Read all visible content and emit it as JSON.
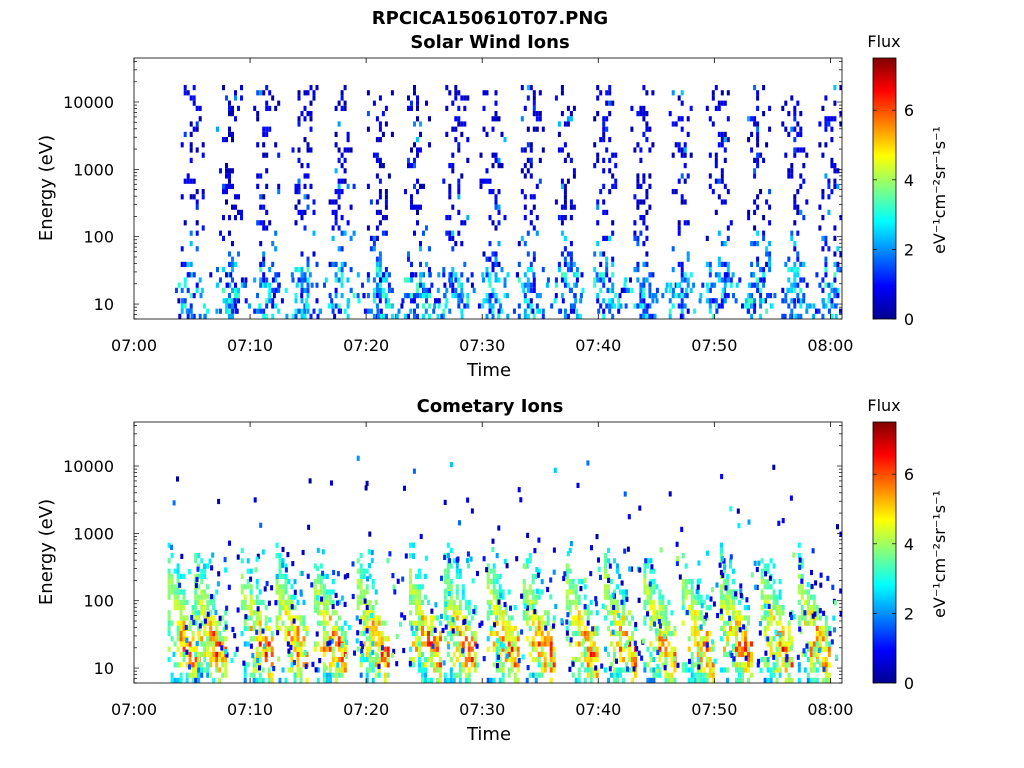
{
  "figure": {
    "title": "RPCICA150610T07.PNG"
  },
  "colorbar": {
    "label": "Flux",
    "unit": "eV⁻¹cm⁻²sr⁻¹s⁻¹",
    "range": [
      0,
      7.5
    ],
    "ticks": [
      "0",
      "2",
      "4",
      "6"
    ],
    "colormap": "jet",
    "stops": [
      "#00008f",
      "#0000ff",
      "#0080ff",
      "#00ffff",
      "#80ff80",
      "#ffff00",
      "#ff8000",
      "#ff0000",
      "#800000"
    ]
  },
  "chart_data": [
    {
      "type": "heatmap",
      "title": "Solar Wind Ions",
      "xlabel": "Time",
      "ylabel": "Energy (eV)",
      "xlim": [
        "07:00",
        "08:01"
      ],
      "ylim": [
        6,
        45000
      ],
      "yscale": "log",
      "xticks": [
        "07:00",
        "07:10",
        "07:20",
        "07:30",
        "07:40",
        "07:50",
        "08:00"
      ],
      "yticks": [
        "10",
        "100",
        "1000",
        "10000"
      ],
      "colorbar_label": "Flux",
      "burst_times_min": [
        4.8,
        8.1,
        11.3,
        14.6,
        17.8,
        21.1,
        24.3,
        27.6,
        30.8,
        34.1,
        37.3,
        40.6,
        43.8,
        47.1,
        50.3,
        53.6,
        56.8,
        60.0
      ],
      "dominant_flux_low_energy": 2.0,
      "dominant_flux_high_energy": 0.5,
      "max_energy_eV": 20000
    },
    {
      "type": "heatmap",
      "title": "Cometary Ions",
      "xlabel": "Time",
      "ylabel": "Energy (eV)",
      "xlim": [
        "07:00",
        "08:01"
      ],
      "ylim": [
        6,
        45000
      ],
      "yscale": "log",
      "xticks": [
        "07:00",
        "07:10",
        "07:20",
        "07:30",
        "07:40",
        "07:50",
        "08:00"
      ],
      "yticks": [
        "10",
        "100",
        "1000",
        "10000"
      ],
      "colorbar_label": "Flux",
      "burst_times_min": [
        4.7,
        7.0,
        11.0,
        14.0,
        17.3,
        21.0,
        25.5,
        28.5,
        32.2,
        35.3,
        39.0,
        42.3,
        45.7,
        49.0,
        52.3,
        55.8,
        59.0
      ],
      "peak_flux": 7.0,
      "peak_energy_eV": 20,
      "sparse_max_energy_eV": 15000
    }
  ]
}
